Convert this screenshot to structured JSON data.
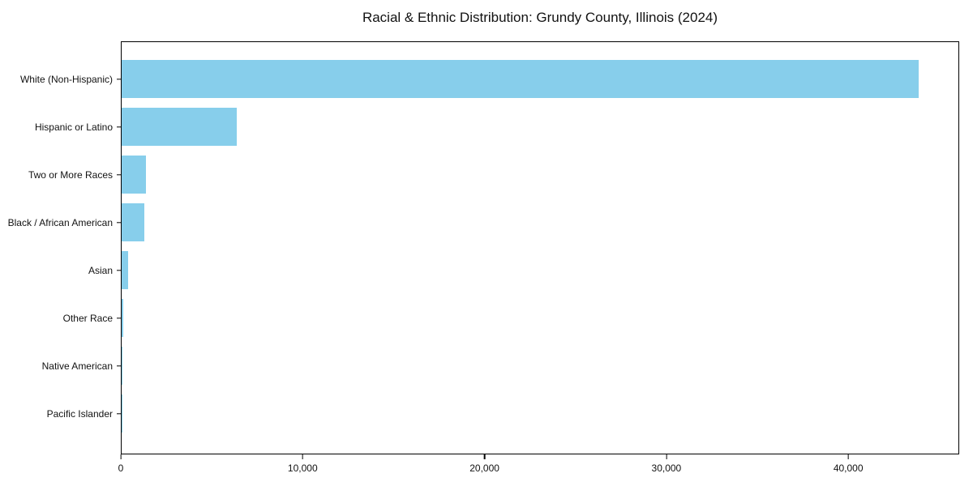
{
  "chart_data": {
    "type": "bar",
    "orientation": "horizontal",
    "title": "Racial & Ethnic Distribution: Grundy County, Illinois (2024)",
    "categories": [
      "White (Non-Hispanic)",
      "Hispanic or Latino",
      "Two or More Races",
      "Black / African American",
      "Asian",
      "Other Race",
      "Native American",
      "Pacific Islander"
    ],
    "values": [
      43900,
      6350,
      1340,
      1250,
      370,
      110,
      35,
      10
    ],
    "xlabel": "",
    "ylabel": "",
    "xlim": [
      0,
      46100
    ],
    "x_ticks": [
      {
        "value": 0,
        "label": "0"
      },
      {
        "value": 10000,
        "label": "10,000"
      },
      {
        "value": 20000,
        "label": "20,000"
      },
      {
        "value": 30000,
        "label": "30,000"
      },
      {
        "value": 40000,
        "label": "40,000"
      }
    ],
    "bar_color": "#87CEEB",
    "grid": false,
    "legend": false,
    "bar_height_fraction": 0.8
  }
}
